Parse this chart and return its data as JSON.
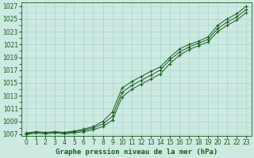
{
  "title": "Graphe pression niveau de la mer (hPa)",
  "background_color": "#cce9e2",
  "plot_bg_color": "#cce9e2",
  "grid_color": "#aad4cc",
  "line_color": "#1a5c1a",
  "marker_color": "#1a5c1a",
  "x_values": [
    0,
    1,
    2,
    3,
    4,
    5,
    6,
    7,
    8,
    9,
    10,
    11,
    12,
    13,
    14,
    15,
    16,
    17,
    18,
    19,
    20,
    21,
    22,
    23
  ],
  "series1": [
    1007.2,
    1007.4,
    1007.3,
    1007.4,
    1007.3,
    1007.5,
    1007.8,
    1008.2,
    1009.0,
    1010.5,
    1014.2,
    1015.2,
    1016.0,
    1016.8,
    1017.5,
    1019.0,
    1020.3,
    1021.0,
    1021.5,
    1022.2,
    1024.0,
    1025.0,
    1025.8,
    1027.0
  ],
  "series2": [
    1007.1,
    1007.3,
    1007.2,
    1007.3,
    1007.2,
    1007.4,
    1007.6,
    1008.0,
    1008.6,
    1009.8,
    1013.5,
    1014.6,
    1015.4,
    1016.2,
    1017.0,
    1018.6,
    1019.8,
    1020.6,
    1021.2,
    1021.8,
    1023.5,
    1024.5,
    1025.3,
    1026.5
  ],
  "series3": [
    1007.0,
    1007.2,
    1007.1,
    1007.2,
    1007.1,
    1007.2,
    1007.4,
    1007.7,
    1008.2,
    1009.2,
    1012.8,
    1014.0,
    1014.8,
    1015.6,
    1016.4,
    1018.0,
    1019.3,
    1020.2,
    1020.8,
    1021.4,
    1023.0,
    1024.0,
    1024.8,
    1026.0
  ],
  "ylim_min": 1007,
  "ylim_max": 1027,
  "ytick_step": 2,
  "xlim_min": 0,
  "xlim_max": 23,
  "title_fontsize": 6.5,
  "tick_fontsize": 5.5
}
